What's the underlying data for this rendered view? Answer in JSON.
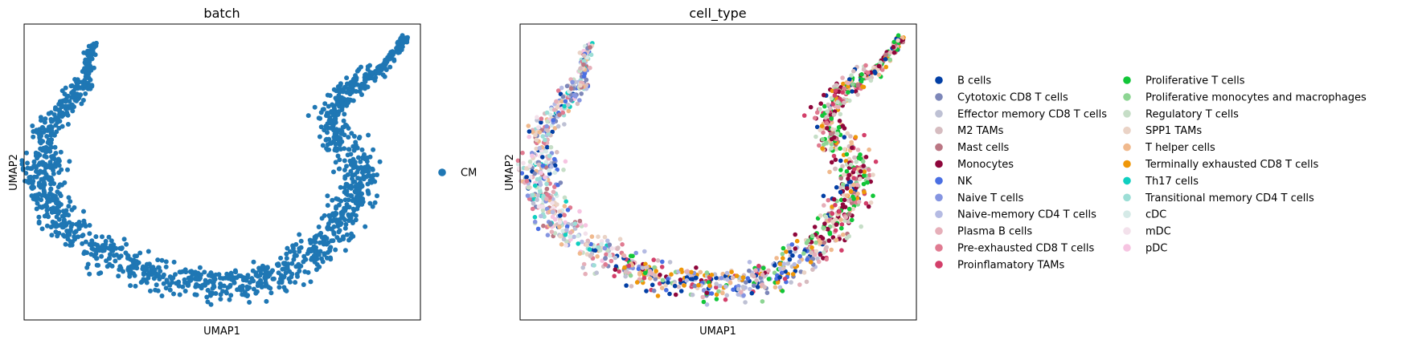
{
  "chart_data": [
    {
      "type": "scatter",
      "title": "batch",
      "xlabel": "UMAP1",
      "ylabel": "UMAP2",
      "xticks": "none",
      "yticks": "none",
      "grid": false,
      "legend": "right",
      "categories": [
        {
          "name": "CM",
          "color": "#1f77b4"
        }
      ]
    },
    {
      "type": "scatter",
      "title": "cell_type",
      "xlabel": "UMAP1",
      "ylabel": "UMAP2",
      "xticks": "none",
      "yticks": "none",
      "grid": false,
      "legend": "right, two columns",
      "categories": [
        {
          "name": "B cells",
          "color": "#023fa5"
        },
        {
          "name": "Cytotoxic CD8 T cells",
          "color": "#7d87b9"
        },
        {
          "name": "Effector memory CD8 T cells",
          "color": "#bec1d4"
        },
        {
          "name": "M2 TAMs",
          "color": "#d6bcc0"
        },
        {
          "name": "Mast cells",
          "color": "#bb7784"
        },
        {
          "name": "Monocytes",
          "color": "#8e063b"
        },
        {
          "name": "NK",
          "color": "#4a6fe3"
        },
        {
          "name": "Naive T cells",
          "color": "#8595e1"
        },
        {
          "name": "Naive-memory CD4 T cells",
          "color": "#b5bbe3"
        },
        {
          "name": "Plasma B cells",
          "color": "#e6afb9"
        },
        {
          "name": "Pre-exhausted CD8 T cells",
          "color": "#e07b91"
        },
        {
          "name": "Proinflamatory TAMs",
          "color": "#d33f6a"
        },
        {
          "name": "Proliferative T cells",
          "color": "#11c638"
        },
        {
          "name": "Proliferative monocytes and macrophages",
          "color": "#8dd593"
        },
        {
          "name": "Regulatory T cells",
          "color": "#c6dec7"
        },
        {
          "name": "SPP1 TAMs",
          "color": "#ead3c6"
        },
        {
          "name": "T helper cells",
          "color": "#f0b98d"
        },
        {
          "name": "Terminally exhausted CD8 T cells",
          "color": "#ef9708"
        },
        {
          "name": "Th17 cells",
          "color": "#0fcfc0"
        },
        {
          "name": "Transitional memory CD4 T cells",
          "color": "#9cded6"
        },
        {
          "name": "cDC",
          "color": "#d5eae7"
        },
        {
          "name": "mDC",
          "color": "#f3e1eb"
        },
        {
          "name": "pDC",
          "color": "#f6c4e1"
        }
      ]
    }
  ]
}
